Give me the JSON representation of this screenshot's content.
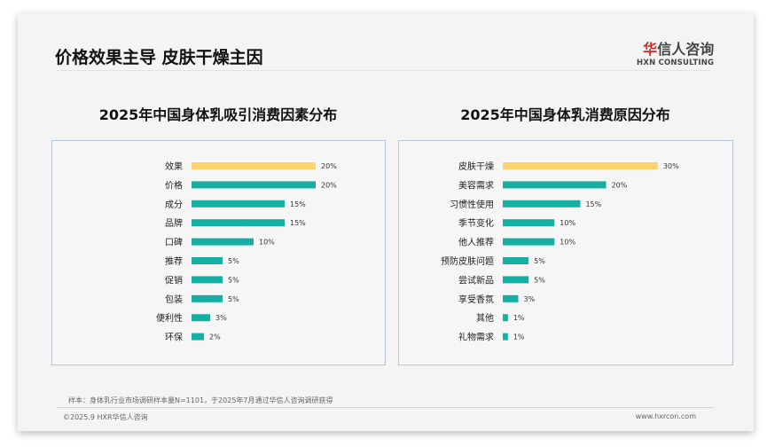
{
  "header": {
    "title": "价格效果主导 皮肤干燥主因",
    "logo_cn_red": "华",
    "logo_cn": "信人咨询",
    "logo_en": "HXN CONSULTING"
  },
  "colors": {
    "highlight": "#FFD36B",
    "bar": "#17AFA4"
  },
  "chart_data": [
    {
      "type": "bar",
      "orientation": "horizontal",
      "title": "2025年中国身体乳吸引消费因素分布",
      "categories": [
        "效果",
        "价格",
        "成分",
        "品牌",
        "口碑",
        "推荐",
        "促销",
        "包装",
        "便利性",
        "环保"
      ],
      "values": [
        20,
        20,
        15,
        15,
        10,
        5,
        5,
        5,
        3,
        2
      ],
      "unit": "%",
      "highlight_index": 0
    },
    {
      "type": "bar",
      "orientation": "horizontal",
      "title": "2025年中国身体乳消费原因分布",
      "categories": [
        "皮肤干燥",
        "美容需求",
        "习惯性使用",
        "季节变化",
        "他人推荐",
        "预防皮肤问题",
        "尝试新品",
        "享受香氛",
        "其他",
        "礼物需求"
      ],
      "values": [
        30,
        20,
        15,
        10,
        10,
        5,
        5,
        3,
        1,
        1
      ],
      "unit": "%",
      "highlight_index": 0
    }
  ],
  "footer": {
    "note": "样本：身体乳行业市场调研样本量N=1101，于2025年7月通过华信人咨询调研获得",
    "copyright": "©2025.9 HXR华信人咨询",
    "website": "www.hxrcon.com"
  }
}
